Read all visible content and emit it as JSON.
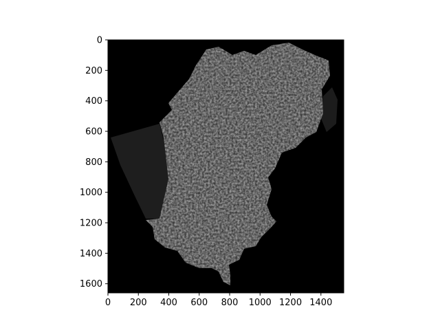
{
  "figure": {
    "background": "#ffffff",
    "image": {
      "description_name": "grayscale satellite image of a land region on black background",
      "background_color": "#000000",
      "x_extent": [
        0,
        1550
      ],
      "y_extent": [
        0,
        1660
      ]
    },
    "x_axis": {
      "ticks": [
        0,
        200,
        400,
        600,
        800,
        1000,
        1200,
        1400
      ],
      "tick_labels": [
        "0",
        "200",
        "400",
        "600",
        "800",
        "1000",
        "1200",
        "1400"
      ]
    },
    "y_axis": {
      "inverted": true,
      "ticks": [
        0,
        200,
        400,
        600,
        800,
        1000,
        1200,
        1400,
        1600
      ],
      "tick_labels": [
        "0",
        "200",
        "400",
        "600",
        "800",
        "1000",
        "1200",
        "1400",
        "1600"
      ]
    }
  }
}
